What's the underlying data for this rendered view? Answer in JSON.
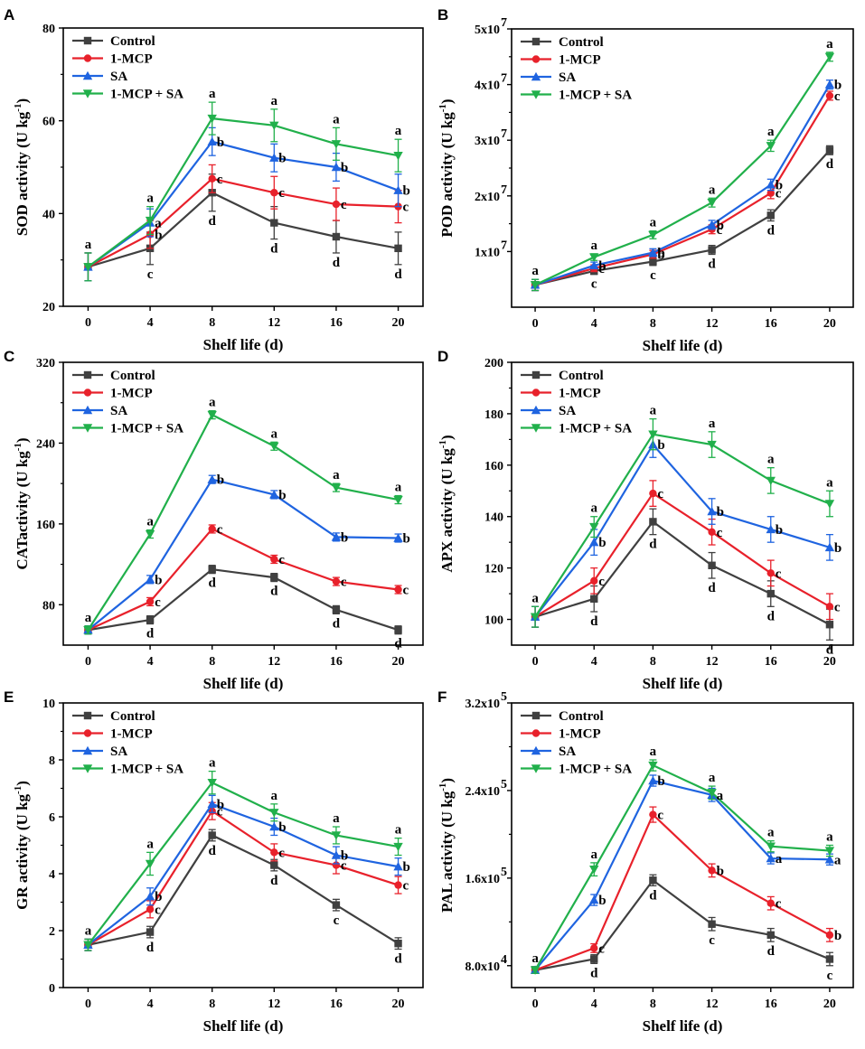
{
  "colors": {
    "Control": "#404040",
    "1-MCP": "#e8212b",
    "SA": "#1f64e0",
    "1-MCP + SA": "#21b04b"
  },
  "legend": [
    "Control",
    "1-MCP",
    "SA",
    "1-MCP + SA"
  ],
  "chart_data": [
    {
      "type": "line",
      "panel": "A",
      "xlabel": "Shelf life (d)",
      "ylabel_main": "SOD activity (U kg",
      "ylabel_sup": "-1",
      "ylabel_end": ")",
      "x": [
        0,
        4,
        8,
        12,
        16,
        20
      ],
      "ylim": [
        20,
        80
      ],
      "ytick_values": [
        20,
        40,
        60,
        80
      ],
      "ytick_labels": [
        "20",
        "40",
        "60",
        "80"
      ],
      "series": [
        {
          "name": "Control",
          "values": [
            28.5,
            32.5,
            44.5,
            38.0,
            35.0,
            32.5
          ],
          "errors": [
            3,
            3.5,
            4,
            3.5,
            3.5,
            3.5
          ],
          "letters": [
            "a",
            "c",
            "d",
            "d",
            "d",
            "d"
          ]
        },
        {
          "name": "1-MCP",
          "values": [
            28.5,
            35.5,
            47.5,
            44.5,
            42.0,
            41.5
          ],
          "errors": [
            3,
            3,
            3,
            3.5,
            3.5,
            3.5
          ],
          "letters": [
            "",
            "b",
            "c",
            "c",
            "c",
            "c"
          ]
        },
        {
          "name": "SA",
          "values": [
            28.5,
            38.0,
            55.5,
            52.0,
            50.0,
            45.0
          ],
          "errors": [
            3,
            3,
            3,
            3,
            3,
            3.5
          ],
          "letters": [
            "",
            "a",
            "b",
            "b",
            "b",
            "b"
          ]
        },
        {
          "name": "1-MCP + SA",
          "values": [
            28.5,
            38.5,
            60.5,
            59.0,
            55.0,
            52.5
          ],
          "errors": [
            3,
            3,
            3.5,
            3.5,
            3.5,
            3.5
          ],
          "letters": [
            "",
            "a",
            "a",
            "a",
            "a",
            "a"
          ]
        }
      ]
    },
    {
      "type": "line",
      "panel": "B",
      "xlabel": "Shelf life (d)",
      "ylabel_main": "POD activity (U kg",
      "ylabel_sup": "-1",
      "ylabel_end": ")",
      "x": [
        0,
        4,
        8,
        12,
        16,
        20
      ],
      "ylim": [
        0,
        50000000
      ],
      "ytick_values": [
        10000000,
        20000000,
        30000000,
        40000000,
        50000000
      ],
      "ytick_labels": [
        "1x10",
        "2x10",
        "3x10",
        "4x10",
        "5x10"
      ],
      "ytick_exp": "7",
      "series": [
        {
          "name": "Control",
          "values": [
            4000000,
            6500000,
            8200000,
            10300000,
            16500000,
            28200000
          ],
          "errors": [
            1000000,
            600000,
            700000,
            800000,
            1000000,
            800000
          ],
          "letters": [
            "a",
            "c",
            "c",
            "d",
            "d",
            "d"
          ]
        },
        {
          "name": "1-MCP",
          "values": [
            4000000,
            7000000,
            9500000,
            14000000,
            20500000,
            38000000
          ],
          "errors": [
            1000000,
            600000,
            700000,
            800000,
            1000000,
            800000
          ],
          "letters": [
            "",
            "c",
            "b",
            "c",
            "c",
            "c"
          ]
        },
        {
          "name": "SA",
          "values": [
            4000000,
            7500000,
            9800000,
            14800000,
            22000000,
            40000000
          ],
          "errors": [
            1000000,
            600000,
            700000,
            800000,
            1000000,
            800000
          ],
          "letters": [
            "",
            "b",
            "b",
            "b",
            "b",
            "b"
          ]
        },
        {
          "name": "1-MCP + SA",
          "values": [
            4000000,
            9000000,
            13000000,
            18800000,
            29000000,
            45000000
          ],
          "errors": [
            1000000,
            600000,
            700000,
            800000,
            1000000,
            800000
          ],
          "letters": [
            "",
            "a",
            "a",
            "a",
            "a",
            "a"
          ]
        }
      ]
    },
    {
      "type": "line",
      "panel": "C",
      "xlabel": "Shelf life (d)",
      "ylabel_main": "CATactivity (U kg",
      "ylabel_sup": "-1",
      "ylabel_end": ")",
      "x": [
        0,
        4,
        8,
        12,
        16,
        20
      ],
      "ylim": [
        40,
        320
      ],
      "ytick_values": [
        80,
        160,
        240,
        320
      ],
      "ytick_labels": [
        "80",
        "160",
        "240",
        "320"
      ],
      "series": [
        {
          "name": "Control",
          "values": [
            55,
            65,
            115,
            107,
            75,
            55
          ],
          "errors": [
            4,
            4,
            4,
            4,
            4,
            4
          ],
          "letters": [
            "a",
            "d",
            "d",
            "d",
            "d",
            "d"
          ]
        },
        {
          "name": "1-MCP",
          "values": [
            55,
            83,
            155,
            125,
            103,
            95
          ],
          "errors": [
            4,
            4,
            4,
            4,
            4,
            4
          ],
          "letters": [
            "",
            "c",
            "c",
            "c",
            "c",
            "c"
          ]
        },
        {
          "name": "SA",
          "values": [
            55,
            105,
            204,
            189,
            147,
            146
          ],
          "errors": [
            4,
            4,
            4,
            4,
            4,
            4
          ],
          "letters": [
            "",
            "b",
            "b",
            "b",
            "b",
            "b"
          ]
        },
        {
          "name": "1-MCP + SA",
          "values": [
            55,
            150,
            268,
            237,
            196,
            184
          ],
          "errors": [
            4,
            4,
            4,
            4,
            4,
            4
          ],
          "letters": [
            "",
            "a",
            "a",
            "a",
            "a",
            "a"
          ]
        }
      ]
    },
    {
      "type": "line",
      "panel": "D",
      "xlabel": "Shelf life (d)",
      "ylabel_main": "APX activity (U kg",
      "ylabel_sup": "-1",
      "ylabel_end": ")",
      "x": [
        0,
        4,
        8,
        12,
        16,
        20
      ],
      "ylim": [
        90,
        200
      ],
      "ytick_values": [
        100,
        120,
        140,
        160,
        180,
        200
      ],
      "ytick_labels": [
        "100",
        "120",
        "140",
        "160",
        "180",
        "200"
      ],
      "series": [
        {
          "name": "Control",
          "values": [
            101,
            108,
            138,
            121,
            110,
            98
          ],
          "errors": [
            4,
            5,
            5,
            5,
            5,
            6
          ],
          "letters": [
            "a",
            "d",
            "d",
            "d",
            "d",
            "d"
          ]
        },
        {
          "name": "1-MCP",
          "values": [
            101,
            115,
            149,
            134,
            118,
            105
          ],
          "errors": [
            4,
            5,
            5,
            5,
            5,
            5
          ],
          "letters": [
            "",
            "c",
            "c",
            "c",
            "c",
            "c"
          ]
        },
        {
          "name": "SA",
          "values": [
            101,
            130,
            168,
            142,
            135,
            128
          ],
          "errors": [
            4,
            5,
            5,
            5,
            5,
            5
          ],
          "letters": [
            "",
            "b",
            "b",
            "b",
            "b",
            "b"
          ]
        },
        {
          "name": "1-MCP + SA",
          "values": [
            101,
            136,
            172,
            168,
            154,
            145
          ],
          "errors": [
            4,
            4,
            6,
            5,
            5,
            5
          ],
          "letters": [
            "",
            "a",
            "a",
            "a",
            "a",
            "a"
          ]
        }
      ]
    },
    {
      "type": "line",
      "panel": "E",
      "xlabel": "Shelf life (d)",
      "ylabel_main": "GR activity (U kg",
      "ylabel_sup": "-1",
      "ylabel_end": ")",
      "x": [
        0,
        4,
        8,
        12,
        16,
        20
      ],
      "ylim": [
        0,
        10
      ],
      "ytick_values": [
        0,
        2,
        4,
        6,
        8,
        10
      ],
      "ytick_labels": [
        "0",
        "2",
        "4",
        "6",
        "8",
        "10"
      ],
      "series": [
        {
          "name": "Control",
          "values": [
            1.5,
            1.95,
            5.35,
            4.3,
            2.9,
            1.55
          ],
          "errors": [
            0.2,
            0.2,
            0.2,
            0.2,
            0.2,
            0.2
          ],
          "letters": [
            "a",
            "d",
            "d",
            "d",
            "c",
            "d"
          ]
        },
        {
          "name": "1-MCP",
          "values": [
            1.5,
            2.75,
            6.2,
            4.75,
            4.3,
            3.6
          ],
          "errors": [
            0.2,
            0.3,
            0.3,
            0.3,
            0.3,
            0.3
          ],
          "letters": [
            "",
            "c",
            "c",
            "c",
            "c",
            "c"
          ]
        },
        {
          "name": "SA",
          "values": [
            1.5,
            3.2,
            6.45,
            5.65,
            4.65,
            4.25
          ],
          "errors": [
            0.2,
            0.3,
            0.3,
            0.3,
            0.3,
            0.3
          ],
          "letters": [
            "",
            "b",
            "b",
            "b",
            "b",
            "b"
          ]
        },
        {
          "name": "1-MCP + SA",
          "values": [
            1.5,
            4.35,
            7.2,
            6.15,
            5.35,
            4.95
          ],
          "errors": [
            0.2,
            0.4,
            0.4,
            0.3,
            0.3,
            0.3
          ],
          "letters": [
            "",
            "a",
            "a",
            "a",
            "a",
            "a"
          ]
        }
      ]
    },
    {
      "type": "line",
      "panel": "F",
      "xlabel": "Shelf life (d)",
      "ylabel_main": "PAL activity (U kg",
      "ylabel_sup": "-1",
      "ylabel_end": ")",
      "x": [
        0,
        4,
        8,
        12,
        16,
        20
      ],
      "ylim": [
        60000,
        320000
      ],
      "ytick_values": [
        80000,
        160000,
        240000,
        320000
      ],
      "ytick_labels": [
        "8.0x10",
        "1.6x10",
        "2.4x10",
        "3.2x10"
      ],
      "ytick_exps": [
        "4",
        "5",
        "5",
        "5"
      ],
      "series": [
        {
          "name": "Control",
          "values": [
            76000,
            86000,
            158000,
            118000,
            108000,
            86000
          ],
          "errors": [
            3000,
            4000,
            5000,
            6000,
            6000,
            6000
          ],
          "letters": [
            "a",
            "d",
            "d",
            "c",
            "d",
            "c"
          ]
        },
        {
          "name": "1-MCP",
          "values": [
            76000,
            96000,
            218000,
            167000,
            137000,
            108000
          ],
          "errors": [
            3000,
            4000,
            7000,
            6000,
            6000,
            6000
          ],
          "letters": [
            "",
            "c",
            "c",
            "b",
            "c",
            "b"
          ]
        },
        {
          "name": "SA",
          "values": [
            76000,
            140000,
            249000,
            236000,
            178000,
            177000
          ],
          "errors": [
            3000,
            5000,
            5000,
            6000,
            5000,
            5000
          ],
          "letters": [
            "",
            "b",
            "b",
            "a",
            "a",
            "a"
          ]
        },
        {
          "name": "1-MCP + SA",
          "values": [
            76000,
            168000,
            263000,
            238000,
            189000,
            185000
          ],
          "errors": [
            3000,
            6000,
            5000,
            6000,
            5000,
            5000
          ],
          "letters": [
            "",
            "a",
            "a",
            "a",
            "a",
            "a"
          ]
        }
      ]
    }
  ]
}
